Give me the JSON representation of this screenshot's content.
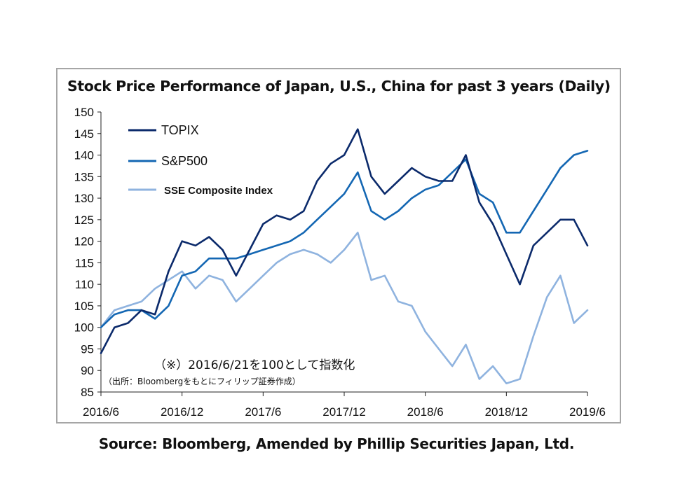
{
  "source_text": "Source: Bloomberg, Amended by Phillip Securities Japan, Ltd.",
  "chart_data": {
    "type": "line",
    "title": "Stock Price Performance of Japan, U.S., China for past 3 years (Daily)",
    "note": "（※）2016/6/21を100として指数化",
    "note_sub": "（出所：Bloombergをもとにフィリップ証券作成）",
    "xlabel": "",
    "ylabel": "",
    "ylim": [
      85,
      150
    ],
    "yticks": [
      85,
      90,
      95,
      100,
      105,
      110,
      115,
      120,
      125,
      130,
      135,
      140,
      145,
      150
    ],
    "xlim": [
      "2016-06",
      "2019-06"
    ],
    "xticks": [
      "2016/6",
      "2016/12",
      "2017/6",
      "2017/12",
      "2018/6",
      "2018/12",
      "2019/6"
    ],
    "grid": false,
    "legend_position": "top-left",
    "x": [
      "2016-06",
      "2016-07",
      "2016-08",
      "2016-09",
      "2016-10",
      "2016-11",
      "2016-12",
      "2017-01",
      "2017-02",
      "2017-03",
      "2017-04",
      "2017-05",
      "2017-06",
      "2017-07",
      "2017-08",
      "2017-09",
      "2017-10",
      "2017-11",
      "2017-12",
      "2018-01",
      "2018-02",
      "2018-03",
      "2018-04",
      "2018-05",
      "2018-06",
      "2018-07",
      "2018-08",
      "2018-09",
      "2018-10",
      "2018-11",
      "2018-12",
      "2019-01",
      "2019-02",
      "2019-03",
      "2019-04",
      "2019-05",
      "2019-06"
    ],
    "series": [
      {
        "name": "TOPIX",
        "color": "#0b2a6b",
        "values": [
          94,
          100,
          101,
          104,
          103,
          113,
          120,
          119,
          121,
          118,
          112,
          118,
          124,
          126,
          125,
          127,
          134,
          138,
          140,
          146,
          135,
          131,
          134,
          137,
          135,
          134,
          134,
          140,
          129,
          124,
          117,
          110,
          119,
          122,
          125,
          125,
          119
        ]
      },
      {
        "name": "S&P500",
        "color": "#1467b3",
        "values": [
          100,
          103,
          104,
          104,
          102,
          105,
          112,
          113,
          116,
          116,
          116,
          117,
          118,
          119,
          120,
          122,
          125,
          128,
          131,
          136,
          127,
          125,
          127,
          130,
          132,
          133,
          136,
          139,
          131,
          129,
          122,
          122,
          127,
          132,
          137,
          140,
          141
        ]
      },
      {
        "name": "SSE Composite Index",
        "color": "#8fb3df",
        "values": [
          100,
          104,
          105,
          106,
          109,
          111,
          113,
          109,
          112,
          111,
          106,
          109,
          112,
          115,
          117,
          118,
          117,
          115,
          118,
          122,
          111,
          112,
          106,
          105,
          99,
          95,
          91,
          96,
          88,
          91,
          87,
          88,
          98,
          107,
          112,
          101,
          104
        ]
      }
    ]
  }
}
